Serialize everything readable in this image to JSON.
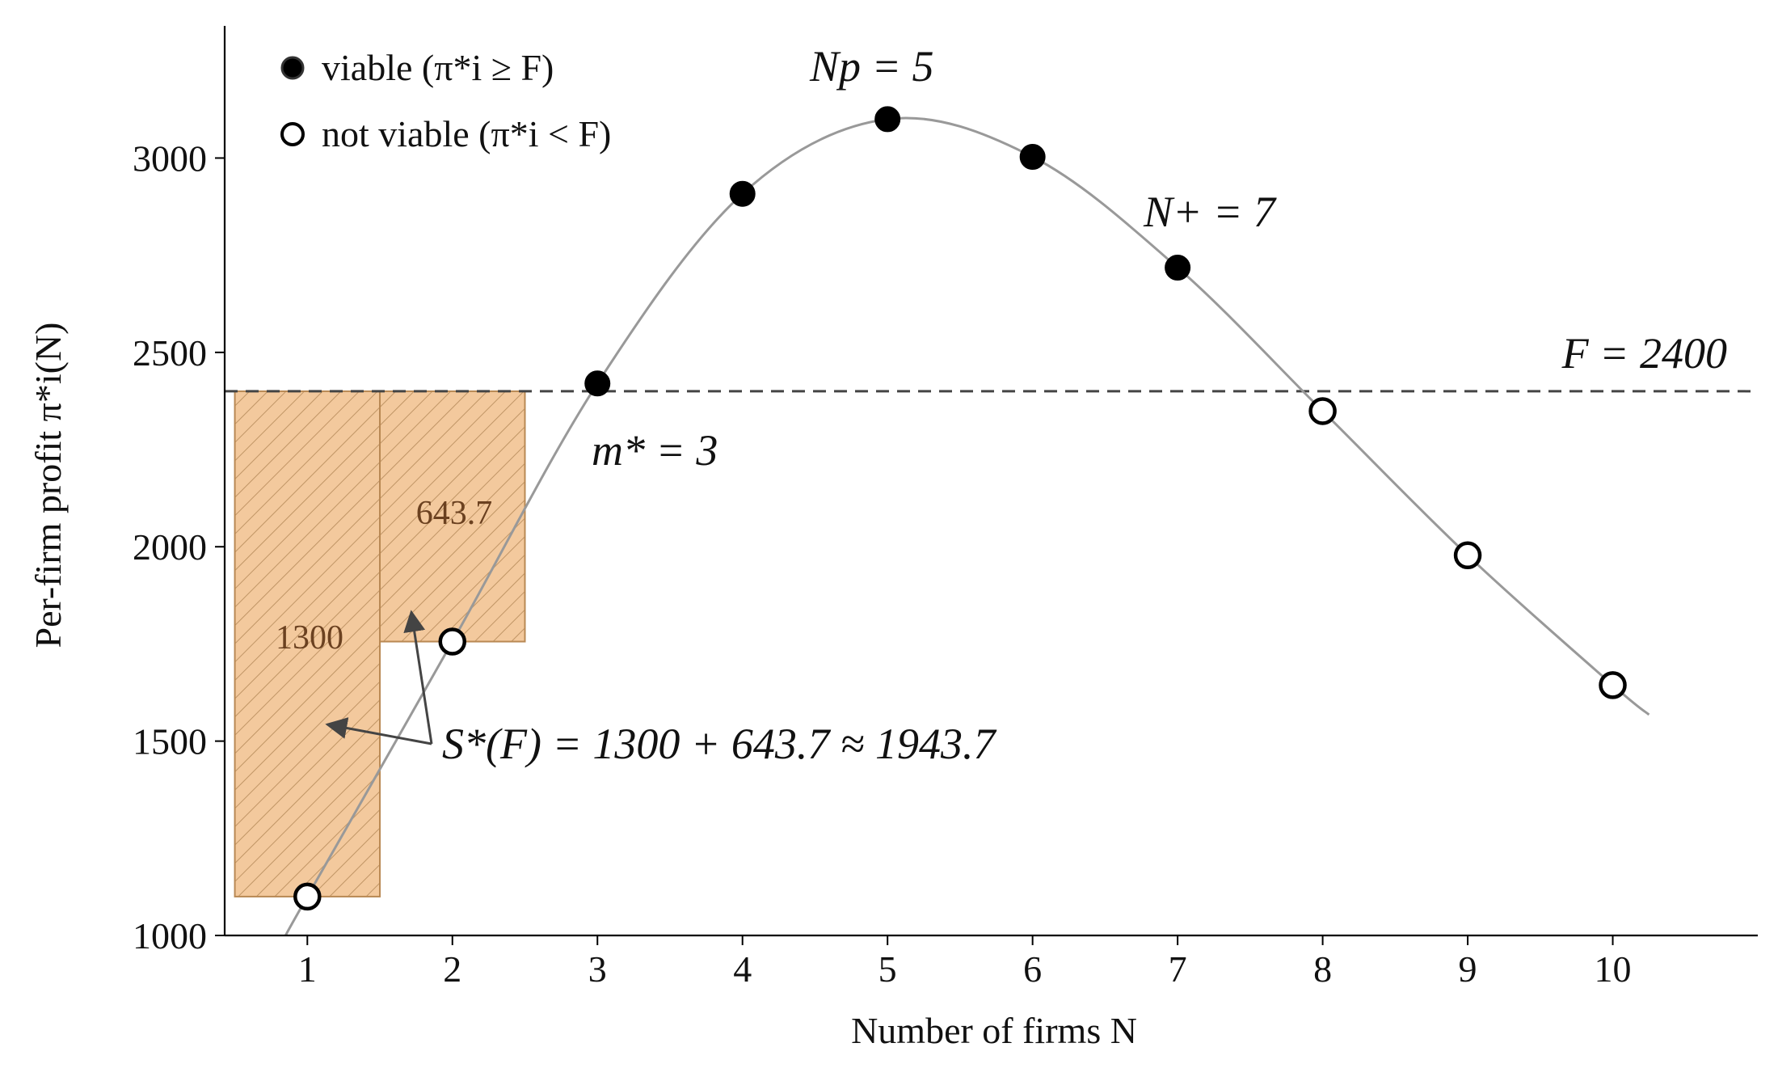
{
  "chart_data": {
    "type": "scatter",
    "xlabel": "Number of firms N",
    "ylabel": "Per-firm profit π*i(N)",
    "xlim": [
      0.43,
      11.0
    ],
    "ylim": [
      1000,
      3340
    ],
    "xticks": [
      1,
      2,
      3,
      4,
      5,
      6,
      7,
      8,
      9,
      10
    ],
    "yticks": [
      1000,
      1500,
      2000,
      2500,
      3000
    ],
    "legend": {
      "placement": "top-left",
      "entries": [
        {
          "label": "viable (π*i ≥ F)",
          "marker": "filled"
        },
        {
          "label": "not viable (π*i < F)",
          "marker": "hollow"
        }
      ]
    },
    "points": [
      {
        "x": 1,
        "y": 1100,
        "viable": false
      },
      {
        "x": 2,
        "y": 1756,
        "viable": false
      },
      {
        "x": 3,
        "y": 2420,
        "viable": true
      },
      {
        "x": 4,
        "y": 2908,
        "viable": true
      },
      {
        "x": 5,
        "y": 3100,
        "viable": true
      },
      {
        "x": 6,
        "y": 3003,
        "viable": true
      },
      {
        "x": 7,
        "y": 2718,
        "viable": true
      },
      {
        "x": 8,
        "y": 2349,
        "viable": false
      },
      {
        "x": 9,
        "y": 1978,
        "viable": false
      },
      {
        "x": 10,
        "y": 1644,
        "viable": false
      }
    ],
    "curve": {
      "x_range": [
        0.85,
        10.25
      ],
      "knots": [
        [
          0.85,
          1000
        ],
        [
          1,
          1100
        ],
        [
          2,
          1756
        ],
        [
          3,
          2420
        ],
        [
          4,
          2908
        ],
        [
          5,
          3100
        ],
        [
          6,
          3003
        ],
        [
          7,
          2718
        ],
        [
          8,
          2349
        ],
        [
          9,
          1978
        ],
        [
          10,
          1644
        ],
        [
          10.25,
          1568
        ]
      ],
      "color": "#999999"
    },
    "hline": {
      "y": 2400,
      "label": "F = 2400",
      "color": "#444444"
    },
    "bars": [
      {
        "x0": 0.5,
        "x1": 1.5,
        "y0": 1100,
        "y1": 2400,
        "label": "1300"
      },
      {
        "x0": 1.5,
        "x1": 2.5,
        "y0": 1756,
        "y1": 2400,
        "label": "643.7"
      }
    ],
    "bar_fill": "#f3c99d",
    "bar_edge": "#b98954",
    "annotations": [
      {
        "id": "np",
        "text": "Np = 5"
      },
      {
        "id": "nplus",
        "text": "N+ = 7"
      },
      {
        "id": "mstar",
        "text": "m* = 3"
      },
      {
        "id": "surplus",
        "text": "S*(F) = 1300 + 643.7 ≈ 1943.7"
      }
    ]
  }
}
